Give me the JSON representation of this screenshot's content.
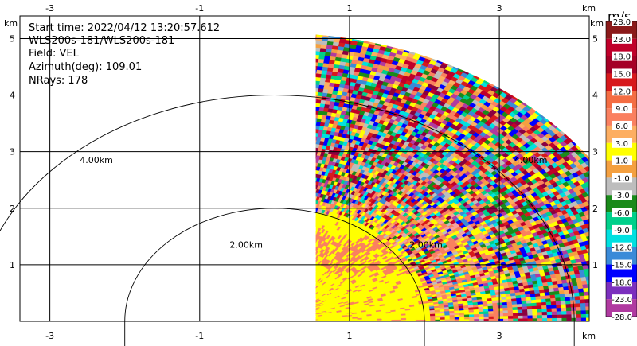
{
  "chart_data": {
    "type": "heatmap",
    "subtype": "radar-ppi-quadrant",
    "info_lines": [
      "Start time: 2022/04/12 13:20:57.612",
      "WLS200s-181/WLS200s-181",
      "Field: VEL",
      "Azimuth(deg): 109.01",
      "NRays: 178"
    ],
    "axis_unit_label": "km",
    "xlim": [
      -3.4,
      4.2
    ],
    "ylim": [
      0,
      5.4
    ],
    "x_ticks": [
      -3,
      -1,
      1,
      3
    ],
    "y_ticks": [
      1,
      2,
      3,
      4,
      5
    ],
    "grid": true,
    "range_rings": [
      {
        "radius_km": 2,
        "label": "2.00km",
        "label_at": [
          -0.6,
          1.3
        ]
      },
      {
        "radius_km": 4,
        "label": "4.00km",
        "label_at": [
          -2.6,
          2.8
        ]
      }
    ],
    "extra_ring_labels": [
      {
        "label": "2.00km",
        "at": [
          1.8,
          1.3
        ]
      },
      {
        "label": "4.00km",
        "at": [
          3.2,
          2.8
        ]
      }
    ],
    "data_sector": {
      "x_min": 0.55,
      "max_range_km": 5.1,
      "angle_deg": [
        0,
        90
      ]
    },
    "colorbar": {
      "unit": "m/s",
      "ticks": [
        "28.0",
        "23.0",
        "18.0",
        "15.0",
        "12.0",
        "9.0",
        "6.0",
        "3.0",
        "1.0",
        "-1.0",
        "-3.0",
        "-6.0",
        "-9.0",
        "-12.0",
        "-15.0",
        "-18.0",
        "-23.0",
        "-28.0"
      ],
      "colors": [
        "#8b1a1a",
        "#c0002a",
        "#a50026",
        "#d7191c",
        "#f46d43",
        "#fa8060",
        "#fdae61",
        "#ffff00",
        "#f4a040",
        "#bdbdbd",
        "#1a8a1a",
        "#00d08a",
        "#00e0e0",
        "#3a8ad8",
        "#0000ff",
        "#7b2fbe",
        "#b03aa0",
        "#8b0040"
      ]
    },
    "color_weights": {
      "near_field": {
        "yellow": 0.85,
        "salmon": 0.15
      },
      "mid_field": {
        "yellow": 0.35,
        "salmon": 0.35,
        "orange": 0.15,
        "pink": 0.15
      },
      "far_field_mixed": [
        "#c0002a",
        "#8b0040",
        "#fa8060",
        "#ffff00",
        "#b03aa0",
        "#1a8a1a",
        "#00e0e0",
        "#3a8ad8",
        "#0000ff",
        "#fdae61",
        "#f4a040",
        "#00d08a",
        "#bdbdbd",
        "#d7191c"
      ]
    }
  }
}
